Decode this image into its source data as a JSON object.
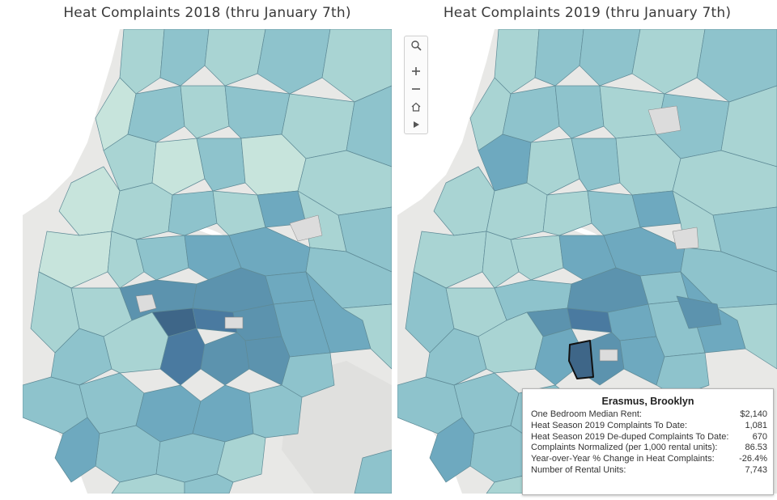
{
  "maps": {
    "left": {
      "title": "Heat Complaints 2018 (thru January 7th)"
    },
    "right": {
      "title": "Heat Complaints 2019 (thru January 7th)"
    }
  },
  "map_toolbar": {
    "icons": [
      "search-icon",
      "zoom-in-icon",
      "zoom-out-icon",
      "home-icon",
      "play-icon"
    ]
  },
  "tooltip": {
    "title": "Erasmus, Brooklyn",
    "rows": [
      {
        "label": "One Bedroom Median Rent:",
        "value": "$2,140"
      },
      {
        "label": "Heat Season 2019 Complaints To Date:",
        "value": "1,081"
      },
      {
        "label": "Heat Season 2019 De-duped Complaints To Date:",
        "value": "670"
      },
      {
        "label": "Complaints Normalized (per 1,000 rental units):",
        "value": "86.53"
      },
      {
        "label": "Year-over-Year % Change in Heat Complaints:",
        "value": "-26.4%"
      },
      {
        "label": "Number of Rental Units:",
        "value": "7,743"
      }
    ]
  },
  "colors": {
    "land_background": "#e8e8e6",
    "water": "#ffffff",
    "no_data": "#dcdcdc",
    "scale": [
      "#c7e4dc",
      "#a9d4d3",
      "#8ec3cc",
      "#6ea9bf",
      "#5c93ae",
      "#4a7aa0",
      "#3e6688"
    ],
    "selected_outline": "#111111"
  }
}
